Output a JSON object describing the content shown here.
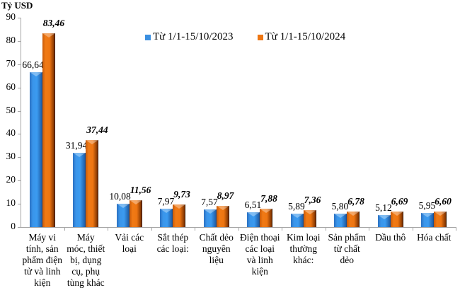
{
  "chart_data": {
    "type": "bar",
    "title": "",
    "ylabel": "Tỷ USD",
    "xlabel": "",
    "ylim": [
      0,
      90
    ],
    "yticks": [
      0,
      10,
      20,
      30,
      40,
      50,
      60,
      70,
      80,
      90
    ],
    "grid": false,
    "legend_position": "top",
    "categories": [
      "Máy vi tính, sản phẩm điện tử và linh kiện",
      "Máy móc, thiết bị, dụng cụ, phụ tùng khác",
      "Vải các loại",
      "Sắt thép các loại:",
      "Chất dẻo nguyên liệu",
      "Điện thoại các loại và linh kiện",
      "Kim loại thường khác:",
      "Sản phẩm từ chất dẻo",
      "Dầu thô",
      "Hóa chất"
    ],
    "category_lines": [
      [
        "Máy vi",
        "tính, sản",
        "phẩm điện",
        "tử và linh",
        "kiện"
      ],
      [
        "Máy",
        "móc, thiết",
        "bị, dụng",
        "cụ, phụ",
        "tùng khác"
      ],
      [
        "Vải các",
        "loại"
      ],
      [
        "Sắt thép",
        "các loại:"
      ],
      [
        "Chất dẻo",
        "nguyên",
        "liệu"
      ],
      [
        "Điện thoại",
        "các loại",
        "và linh",
        "kiện"
      ],
      [
        "Kim loại",
        "thường",
        "khác:"
      ],
      [
        "Sản phẩm",
        "từ chất",
        "dẻo"
      ],
      [
        "Dầu thô"
      ],
      [
        "Hóa chất"
      ]
    ],
    "series": [
      {
        "name": "Từ 1/1-15/10/2023",
        "color": "#3b8fe0",
        "values": [
          66.64,
          31.94,
          10.08,
          7.97,
          7.57,
          6.51,
          5.89,
          5.8,
          5.12,
          5.95
        ],
        "labels": [
          "66,64",
          "31,94",
          "10,08",
          "7,97",
          "7,57",
          "6,51",
          "5,89",
          "5,80",
          "5,12",
          "5,95"
        ]
      },
      {
        "name": "Từ 1/1-15/10/2024",
        "color": "#ee7612",
        "values": [
          83.46,
          37.44,
          11.56,
          9.73,
          8.97,
          7.88,
          7.36,
          6.78,
          6.69,
          6.6
        ],
        "labels": [
          "83,46",
          "37,44",
          "11,56",
          "9,73",
          "8,97",
          "7,88",
          "7,36",
          "6,78",
          "6,69",
          "6,60"
        ]
      }
    ]
  }
}
